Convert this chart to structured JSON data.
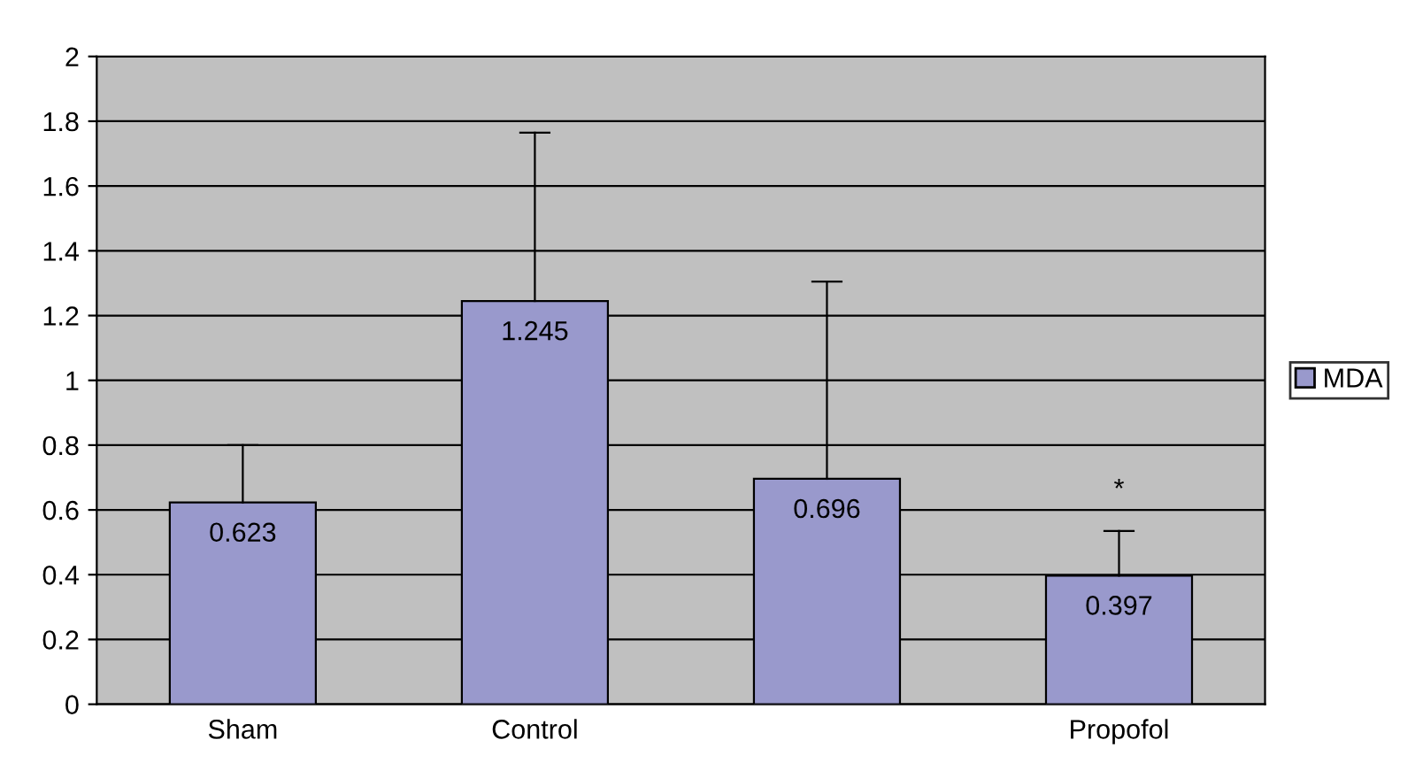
{
  "chart_data": {
    "type": "bar",
    "categories": [
      "Sham",
      "Control",
      null,
      "Propofol"
    ],
    "series": [
      {
        "name": "MDA",
        "color": "#9999cc",
        "values": [
          0.623,
          1.245,
          0.696,
          0.397
        ],
        "errors": [
          [
            0.623,
            0.8
          ],
          [
            1.245,
            1.765
          ],
          [
            0.696,
            1.305
          ],
          [
            0.397,
            0.535
          ]
        ]
      }
    ],
    "data_labels": true,
    "ylim": [
      0,
      2
    ],
    "yticks": [
      0,
      0.2,
      0.4,
      0.6,
      0.8,
      1,
      1.2,
      1.4,
      1.6,
      1.8,
      2
    ],
    "grid": "y",
    "legend": "right",
    "annotations": [
      "*"
    ]
  }
}
